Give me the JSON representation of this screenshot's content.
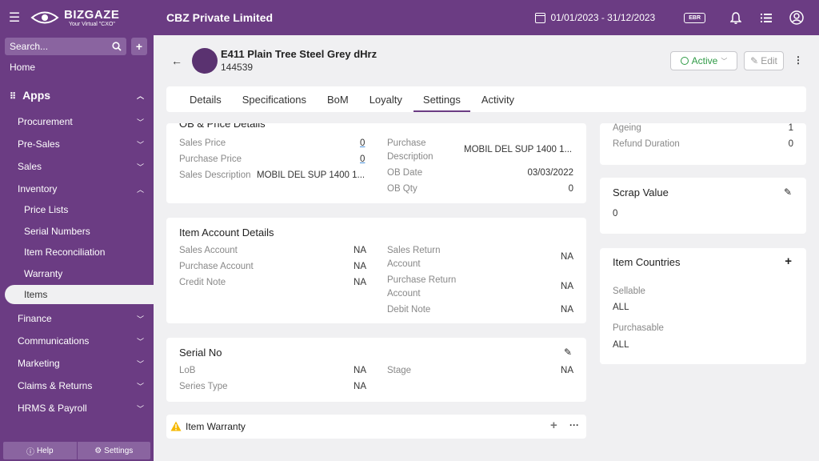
{
  "header": {
    "logo_title": "BIZGAZE",
    "logo_sub": "Your Virtual \"CXO\"",
    "company": "CBZ Private Limited",
    "date_range": "01/01/2023 - 31/12/2023",
    "ebr": "EBR"
  },
  "sidebar": {
    "search_placeholder": "Search...",
    "home": "Home",
    "apps": "Apps",
    "items": [
      {
        "label": "Procurement"
      },
      {
        "label": "Pre-Sales"
      },
      {
        "label": "Sales"
      },
      {
        "label": "Inventory"
      }
    ],
    "inventory_sub": [
      "Price Lists",
      "Serial Numbers",
      "Item Reconciliation",
      "Warranty",
      "Items"
    ],
    "items_after": [
      {
        "label": "Finance"
      },
      {
        "label": "Communications"
      },
      {
        "label": "Marketing"
      },
      {
        "label": "Claims & Returns"
      },
      {
        "label": "HRMS & Payroll"
      }
    ],
    "footer_help": "Help",
    "footer_settings": "Settings"
  },
  "item": {
    "title": "E411 Plain Tree Steel Grey dHrz",
    "code": "144539",
    "status": "Active",
    "edit": "Edit"
  },
  "tabs": [
    "Details",
    "Specifications",
    "BoM",
    "Loyalty",
    "Settings",
    "Activity"
  ],
  "ob_price": {
    "title": "OB & Price Details",
    "sales_price_label": "Sales Price",
    "sales_price": "0",
    "purchase_price_label": "Purchase Price",
    "purchase_price": "0",
    "sales_description_label": "Sales Description",
    "sales_description": "MOBIL DEL SUP 1400 1...",
    "purchase_description_label_1": "Purchase",
    "purchase_description_label_2": "Description",
    "purchase_description": "MOBIL DEL SUP 1400 1...",
    "ob_date_label": "OB Date",
    "ob_date": "03/03/2022",
    "ob_qty_label": "OB Qty",
    "ob_qty": "0"
  },
  "right_top": {
    "ageing_label": "Ageing",
    "ageing": "1",
    "refund_label": "Refund Duration",
    "refund": "0"
  },
  "account": {
    "title": "Item Account Details",
    "sales_account_label": "Sales Account",
    "sales_account": "NA",
    "purchase_account_label": "Purchase Account",
    "purchase_account": "NA",
    "credit_note_label": "Credit Note",
    "credit_note": "NA",
    "sales_return_label_1": "Sales Return",
    "sales_return_label_2": "Account",
    "sales_return": "NA",
    "purchase_return_label_1": "Purchase Return",
    "purchase_return_label_2": "Account",
    "purchase_return": "NA",
    "debit_note_label": "Debit Note",
    "debit_note": "NA"
  },
  "scrap": {
    "title": "Scrap Value",
    "value": "0"
  },
  "countries": {
    "title": "Item Countries",
    "sellable_label": "Sellable",
    "sellable": "ALL",
    "purchasable_label": "Purchasable",
    "purchasable": "ALL"
  },
  "serial": {
    "title": "Serial No",
    "lob_label": "LoB",
    "lob": "NA",
    "series_type_label": "Series Type",
    "series_type": "NA",
    "stage_label": "Stage",
    "stage": "NA"
  },
  "warranty": {
    "title": "Item Warranty"
  },
  "colors": {
    "brand": "#6b3c83",
    "background": "#f0f0f2",
    "active_green": "#2e9a45",
    "warning": "#f5b800"
  }
}
